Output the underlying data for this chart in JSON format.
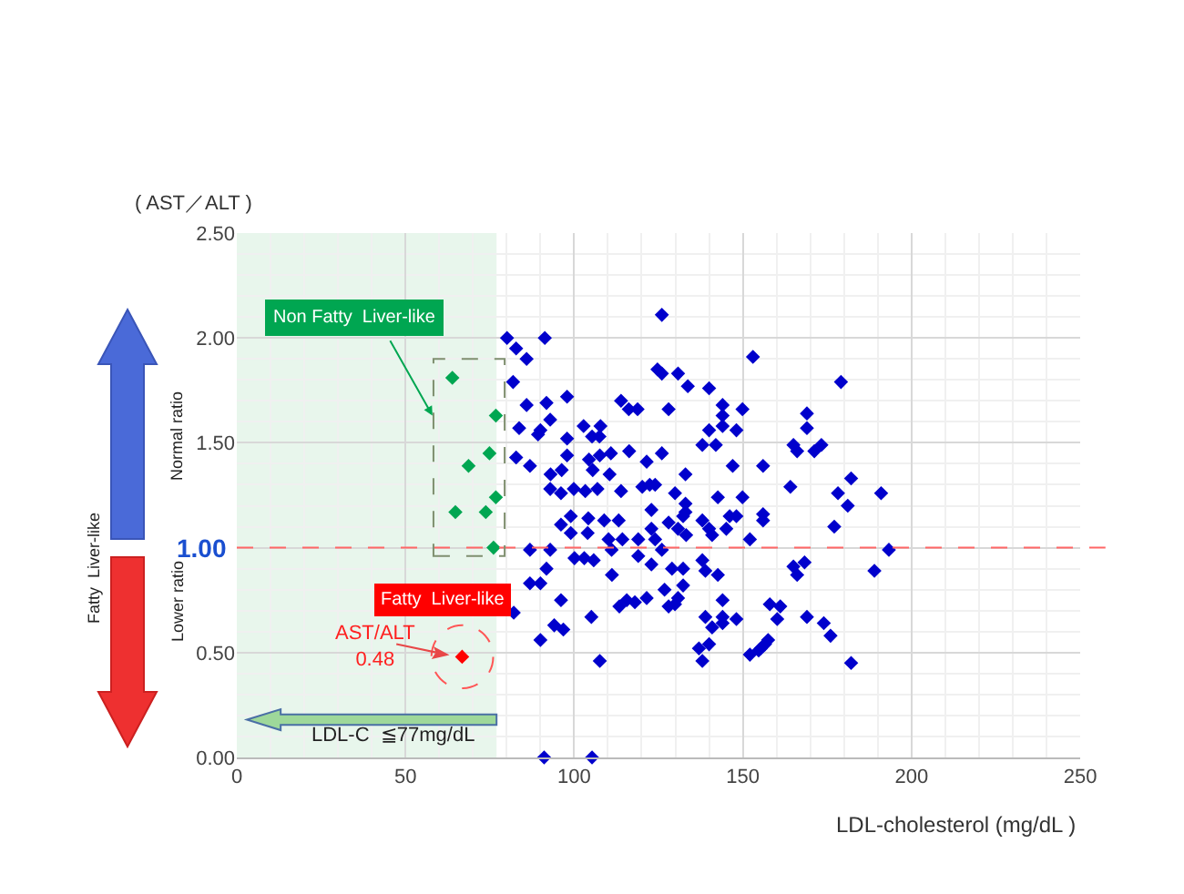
{
  "chart_data": {
    "type": "scatter",
    "xlabel": "LDL-cholesterol (mg/dL )",
    "ylabel": "( AST／ALT )",
    "xlim": [
      0,
      250
    ],
    "xticks": [
      0,
      50,
      100,
      150,
      200,
      250
    ],
    "ylim": [
      0,
      2.5
    ],
    "yticks": [
      {
        "value": 0,
        "label": "0.00"
      },
      {
        "value": 0.5,
        "label": "0.50"
      },
      {
        "value": 1,
        "label": null
      },
      {
        "value": 1.5,
        "label": "1.50"
      },
      {
        "value": 2,
        "label": "2.00"
      },
      {
        "value": 2.5,
        "label": "2.50"
      }
    ],
    "grid": true,
    "marker": "diamond",
    "series": [
      {
        "color": "#0000cc",
        "x": [
          80.1,
          91.3,
          82.8,
          85.9,
          81.9,
          85.9,
          91.8,
          97.9,
          83.7,
          92.9,
          90,
          89.3,
          97.9,
          102.8,
          107.8,
          105.3,
          107.5,
          113.9,
          116.2,
          118.8,
          82.8,
          86.9,
          93,
          96.3,
          97.9,
          104.4,
          107.6,
          110.9,
          110.5,
          105.5,
          116.3,
          92.9,
          96.1,
          99.9,
          103.3,
          106.9,
          113.9,
          120.2,
          122.4,
          99,
          96.1,
          104.2,
          108.9,
          113.2,
          99,
          104,
          110.2,
          114.3,
          119,
          86.9,
          92.9,
          111.1,
          100.1,
          103,
          105.8,
          119,
          91.8,
          86.9,
          90,
          111.2,
          96.1,
          82.1,
          113.4,
          115.6,
          118,
          105.1,
          94.1,
          96.8,
          90,
          107.6,
          91.1,
          105.3,
          126,
          153,
          179.1,
          124.7,
          126,
          130.8,
          133.7,
          140,
          128,
          144,
          144,
          149.9,
          144,
          140,
          148.1,
          169,
          169,
          138,
          142,
          165,
          166.1,
          171.2,
          173.3,
          126,
          121.5,
          147,
          156,
          133,
          124,
          164.1,
          182.1,
          178.2,
          191,
          129.9,
          142.6,
          149.9,
          181.1,
          133,
          133,
          122.9,
          132.3,
          146.1,
          148.1,
          156,
          156,
          138,
          128,
          122.9,
          130.8,
          140,
          140.9,
          145.1,
          133.2,
          124,
          152.1,
          177.1,
          126,
          193.3,
          138,
          122.9,
          165,
          168.3,
          129,
          132.3,
          138.9,
          142.6,
          166.1,
          189,
          121.5,
          126.8,
          132.3,
          130.8,
          128,
          129.9,
          144,
          158,
          161.1,
          144,
          138.9,
          144,
          148.1,
          160.2,
          169,
          174,
          140.9,
          176,
          157.5,
          156.6,
          155.3,
          154.7,
          152.1,
          140,
          137,
          138,
          182.1
        ],
        "values": [
          2.0,
          2.0,
          1.95,
          1.9,
          1.79,
          1.68,
          1.69,
          1.72,
          1.57,
          1.61,
          1.56,
          1.54,
          1.52,
          1.58,
          1.58,
          1.53,
          1.53,
          1.7,
          1.66,
          1.66,
          1.43,
          1.39,
          1.35,
          1.37,
          1.44,
          1.42,
          1.44,
          1.45,
          1.35,
          1.37,
          1.46,
          1.28,
          1.26,
          1.28,
          1.27,
          1.28,
          1.27,
          1.29,
          1.3,
          1.15,
          1.11,
          1.14,
          1.13,
          1.13,
          1.07,
          1.07,
          1.04,
          1.04,
          1.04,
          0.99,
          0.99,
          0.99,
          0.95,
          0.95,
          0.94,
          0.96,
          0.9,
          0.83,
          0.83,
          0.87,
          0.75,
          0.69,
          0.72,
          0.75,
          0.74,
          0.67,
          0.63,
          0.61,
          0.56,
          0.46,
          0.0,
          0.0,
          2.11,
          1.91,
          1.79,
          1.85,
          1.83,
          1.83,
          1.77,
          1.76,
          1.66,
          1.68,
          1.63,
          1.66,
          1.58,
          1.56,
          1.56,
          1.64,
          1.57,
          1.49,
          1.49,
          1.49,
          1.46,
          1.46,
          1.49,
          1.45,
          1.41,
          1.39,
          1.39,
          1.35,
          1.3,
          1.29,
          1.33,
          1.26,
          1.26,
          1.26,
          1.24,
          1.24,
          1.2,
          1.21,
          1.17,
          1.18,
          1.15,
          1.15,
          1.15,
          1.16,
          1.13,
          1.13,
          1.12,
          1.09,
          1.09,
          1.09,
          1.06,
          1.09,
          1.06,
          1.04,
          1.04,
          1.1,
          0.99,
          0.99,
          0.94,
          0.92,
          0.91,
          0.93,
          0.9,
          0.9,
          0.89,
          0.87,
          0.87,
          0.89,
          0.76,
          0.8,
          0.82,
          0.76,
          0.72,
          0.73,
          0.75,
          0.73,
          0.72,
          0.67,
          0.67,
          0.64,
          0.66,
          0.66,
          0.67,
          0.64,
          0.62,
          0.58,
          0.56,
          0.54,
          0.52,
          0.51,
          0.49,
          0.54,
          0.52,
          0.46,
          0.45
        ]
      },
      {
        "color": "#00a651",
        "x": [
          63.9,
          76.8,
          74.9,
          68.7,
          76.8,
          64.8,
          73.8,
          76.1
        ],
        "values": [
          1.81,
          1.63,
          1.45,
          1.39,
          1.24,
          1.17,
          1.17,
          1.0
        ]
      },
      {
        "color": "#ff0000",
        "x": [
          66.8
        ],
        "values": [
          0.48
        ]
      }
    ],
    "ref_lines": [
      {
        "axis": "y",
        "value": 1.0,
        "label": "1.00",
        "color": "#ff6666",
        "line_style": "dashed"
      }
    ],
    "bands": [
      {
        "axis": "x",
        "from": 0,
        "to": 77,
        "label": "LDL-C  ≦77mg/dL",
        "color": "#e8f6ec"
      }
    ],
    "annotations": [
      "Non Fatty  Liver-like",
      "Fatty  Liver-like",
      {
        "text": "AST/ALT\n0.48",
        "x": 66.8,
        "y": 0.48
      },
      "Normal ratio",
      "Lower ratio",
      "Fatty  Liver-like"
    ]
  }
}
